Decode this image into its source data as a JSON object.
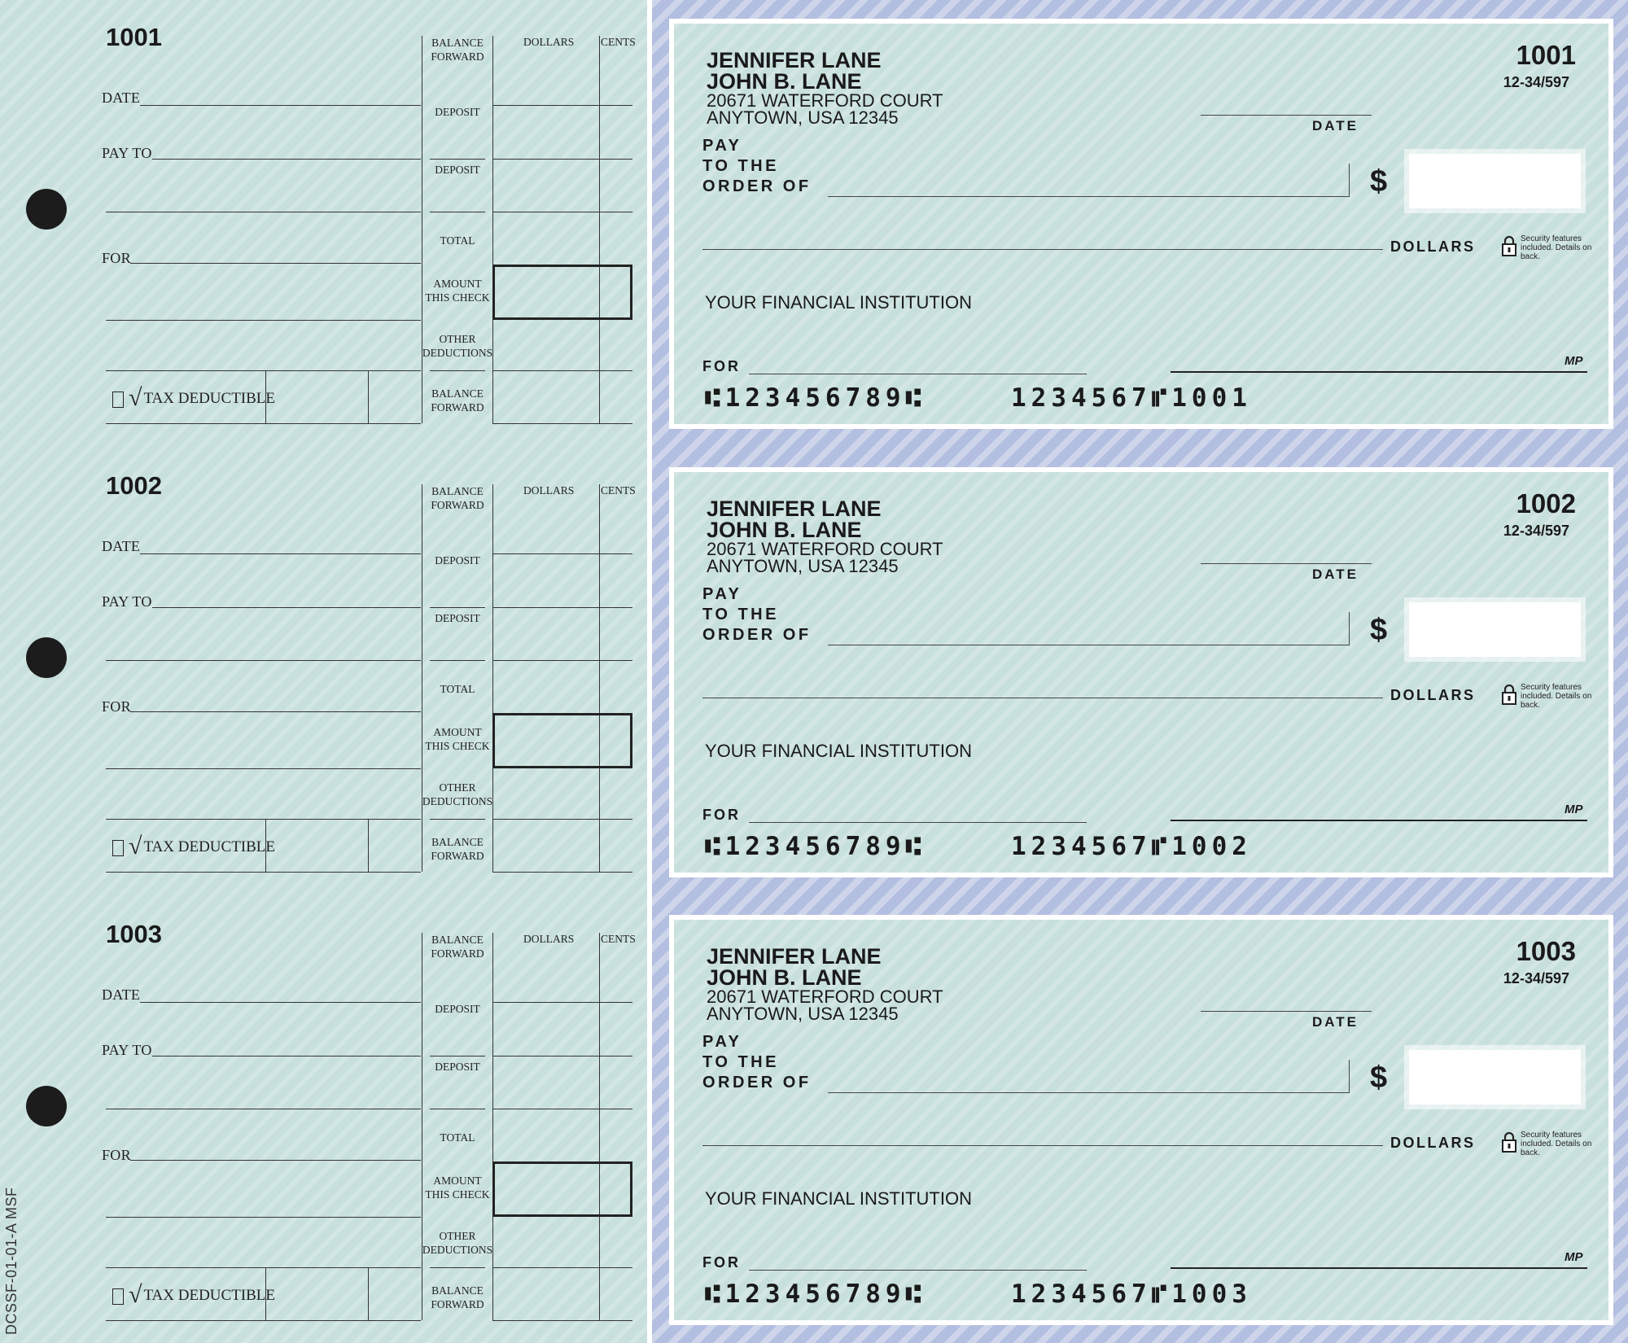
{
  "side_code": "DCSSF-01-01-A MSF",
  "stub_labels": {
    "date": "DATE",
    "pay_to": "PAY TO",
    "for": "FOR",
    "balance_forward": "BALANCE FORWARD",
    "deposit": "DEPOSIT",
    "total": "TOTAL",
    "amount_this_check": "AMOUNT THIS CHECK",
    "other_deductions": "OTHER DEDUCTIONS",
    "dollars": "DOLLARS",
    "cents": "CENTS",
    "tax_deductible": "TAX DEDUCTIBLE",
    "check_mark": "√"
  },
  "check_labels": {
    "owner_line1": "JENNIFER LANE",
    "owner_line2": "JOHN B. LANE",
    "address_line1": "20671 WATERFORD COURT",
    "address_line2": "ANYTOWN, USA 12345",
    "routing_fraction": "12-34/597",
    "date": "DATE",
    "pay_line1": "PAY",
    "pay_line2": "TO THE",
    "pay_line3": "ORDER OF",
    "dollar_sign": "$",
    "dollars": "DOLLARS",
    "security_note": "Security features included. Details on back.",
    "bank_name": "YOUR FINANCIAL INSTITUTION",
    "for": "FOR",
    "signature_mark": "MP",
    "micr_routing": "⑆123456789⑆"
  },
  "checks": [
    {
      "number": "1001",
      "micr_account": "1234567⑈1001"
    },
    {
      "number": "1002",
      "micr_account": "1234567⑈1002"
    },
    {
      "number": "1003",
      "micr_account": "1234567⑈1003"
    }
  ]
}
